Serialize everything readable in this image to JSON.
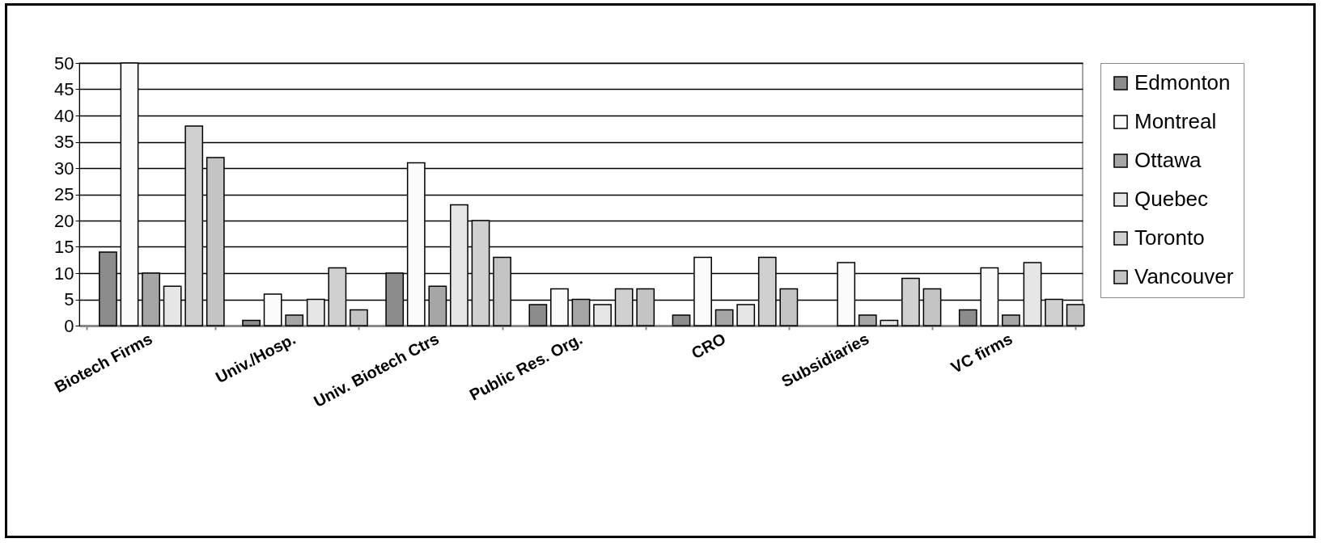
{
  "chart_data": {
    "type": "bar",
    "categories": [
      "Biotech Firms",
      "Univ./Hosp.",
      "Univ. Biotech Ctrs",
      "Public Res. Org.",
      "CRO",
      "Subsidiaries",
      "VC firms"
    ],
    "series": [
      {
        "name": "Edmonton",
        "color": "#8c8c8c",
        "values": [
          14,
          1,
          10,
          4,
          2,
          null,
          3
        ]
      },
      {
        "name": "Montreal",
        "color": "#fbfbfb",
        "values": [
          50,
          6,
          31,
          7,
          13,
          12,
          11
        ]
      },
      {
        "name": "Ottawa",
        "color": "#a6a6a6",
        "values": [
          10,
          2,
          7.5,
          5,
          3,
          2,
          2
        ]
      },
      {
        "name": "Quebec",
        "color": "#e6e6e6",
        "values": [
          7.5,
          5,
          23,
          4,
          4,
          1,
          12
        ]
      },
      {
        "name": "Toronto",
        "color": "#d0d0d0",
        "values": [
          38,
          11,
          20,
          7,
          13,
          9,
          5
        ]
      },
      {
        "name": "Vancouver",
        "color": "#c4c4c4",
        "values": [
          32,
          3,
          13,
          7,
          7,
          7,
          4
        ]
      }
    ],
    "ylim": [
      0,
      50
    ],
    "yticks": [
      0,
      5,
      10,
      15,
      20,
      25,
      30,
      35,
      40,
      45,
      50
    ],
    "grid": "y",
    "legend": "right"
  }
}
